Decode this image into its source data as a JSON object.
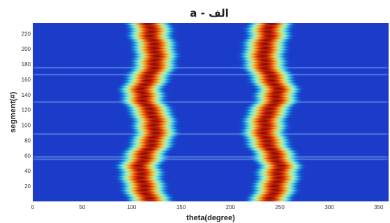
{
  "chart_data": {
    "type": "heatmap",
    "title": "الف - a",
    "xlabel": "theta(degree)",
    "ylabel": "segment(#)",
    "xlim": [
      0,
      360
    ],
    "ylim": [
      0,
      234
    ],
    "x_ticks": [
      0,
      50,
      100,
      150,
      200,
      250,
      300,
      350
    ],
    "x_tick_labels": [
      "0",
      "50",
      "100",
      "150",
      "200",
      "250",
      "300",
      "350"
    ],
    "y_ticks": [
      20,
      40,
      60,
      80,
      100,
      120,
      140,
      160,
      180,
      200,
      220
    ],
    "y_tick_labels": [
      "20",
      "40",
      "60",
      "80",
      "100",
      "120",
      "140",
      "160",
      "180",
      "200",
      "220"
    ],
    "colormap": "jet",
    "colormap_colors": [
      "#00008f",
      "#0000ff",
      "#00ffff",
      "#ffff00",
      "#ff0000",
      "#800000"
    ],
    "background_color": "#1b3cc8",
    "segments": 234,
    "band_left_center": [
      [
        0,
        118
      ],
      [
        20,
        112
      ],
      [
        45,
        108
      ],
      [
        60,
        113
      ],
      [
        80,
        122
      ],
      [
        95,
        124
      ],
      [
        115,
        121
      ],
      [
        130,
        113
      ],
      [
        145,
        110
      ],
      [
        160,
        116
      ],
      [
        180,
        124
      ],
      [
        200,
        124
      ],
      [
        215,
        120
      ],
      [
        234,
        118
      ]
    ],
    "band_right_center": [
      [
        0,
        240
      ],
      [
        20,
        246
      ],
      [
        45,
        250
      ],
      [
        60,
        245
      ],
      [
        80,
        236
      ],
      [
        95,
        234
      ],
      [
        115,
        237
      ],
      [
        130,
        245
      ],
      [
        145,
        248
      ],
      [
        160,
        242
      ],
      [
        180,
        234
      ],
      [
        200,
        234
      ],
      [
        215,
        238
      ],
      [
        234,
        240
      ]
    ],
    "band_width_deg": 18,
    "horizontal_streaks_segment": [
      55,
      58,
      88,
      130,
      166,
      175
    ]
  }
}
